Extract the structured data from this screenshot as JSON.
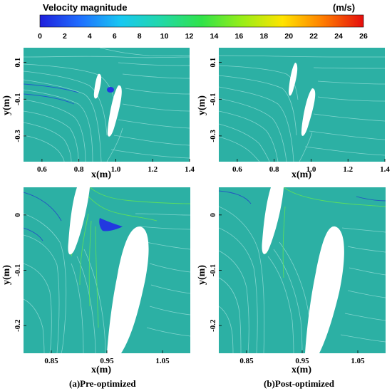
{
  "colorbar": {
    "title": "Velocity magnitude",
    "unit": "(m/s)",
    "min": 0,
    "max": 26,
    "ticks": [
      "0",
      "2",
      "4",
      "6",
      "8",
      "10",
      "12",
      "14",
      "16",
      "18",
      "20",
      "22",
      "24",
      "26"
    ],
    "colors": [
      "#1f1fdc",
      "#1f6fff",
      "#18c8f2",
      "#22d8a8",
      "#31e34a",
      "#98ee18",
      "#ffe400",
      "#ff7d00",
      "#e50d0d"
    ]
  },
  "chart_data": [
    {
      "type": "streamline",
      "panel": "top-left",
      "xlabel": "x(m)",
      "ylabel": "y(m)",
      "xlim": [
        0.5,
        1.4
      ],
      "ylim": [
        -0.44,
        0.18
      ],
      "xticks": [
        "0.6",
        "0.8",
        "1.0",
        "1.2",
        "1.4"
      ],
      "yticks": [
        "0.1",
        "-0.1",
        "-0.3"
      ],
      "background_speed": 14
    },
    {
      "type": "streamline",
      "panel": "top-right",
      "xlabel": "x(m)",
      "ylabel": "y(m)",
      "xlim": [
        0.5,
        1.4
      ],
      "ylim": [
        -0.44,
        0.18
      ],
      "xticks": [
        "0.6",
        "0.8",
        "1.0",
        "1.2",
        "1.4"
      ],
      "yticks": [
        "0.1",
        "-0.1",
        "-0.3"
      ],
      "background_speed": 14
    },
    {
      "type": "streamline",
      "panel": "bottom-left",
      "caption": "(a)Pre-optimized",
      "xlabel": "x(m)",
      "ylabel": "y(m)",
      "xlim": [
        0.8,
        1.1
      ],
      "ylim": [
        -0.25,
        0.05
      ],
      "xticks": [
        "0.85",
        "0.95",
        "1.05"
      ],
      "yticks": [
        "0",
        "-0.1",
        "-0.2"
      ],
      "background_speed": 14
    },
    {
      "type": "streamline",
      "panel": "bottom-right",
      "caption": "(b)Post-optimized",
      "xlabel": "x(m)",
      "ylabel": "y(m)",
      "xlim": [
        0.8,
        1.1
      ],
      "ylim": [
        -0.25,
        0.05
      ],
      "xticks": [
        "0.85",
        "0.95",
        "1.05"
      ],
      "yticks": [
        "0",
        "-0.1",
        "-0.2"
      ],
      "background_speed": 14
    }
  ]
}
